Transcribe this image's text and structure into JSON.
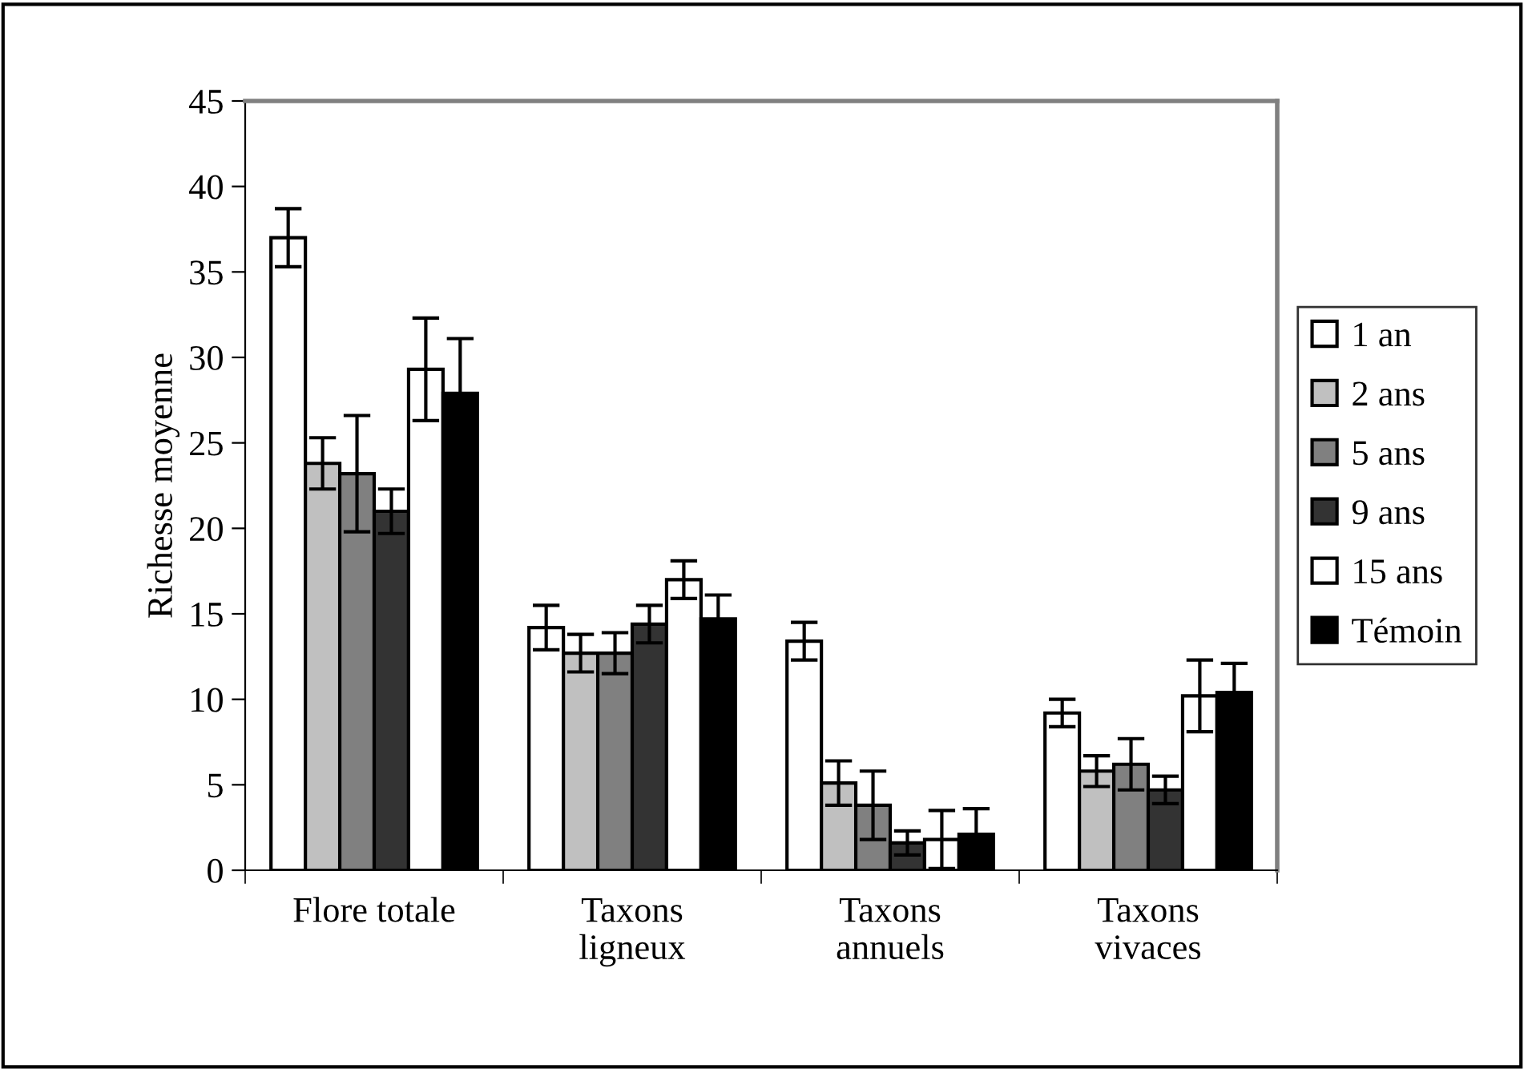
{
  "chart_data": {
    "type": "bar",
    "ylabel": "Richesse moyenne",
    "categories": [
      "Flore totale",
      "Taxons\nligneux",
      "Taxons\nannuels",
      "Taxons\nvivaces"
    ],
    "series": [
      {
        "name": "1 an",
        "color": "#ffffff",
        "values": [
          37,
          14.2,
          13.4,
          9.2
        ],
        "errors": [
          1.7,
          1.3,
          1.1,
          0.8
        ]
      },
      {
        "name": "2 ans",
        "color": "#c0c0c0",
        "values": [
          23.8,
          12.7,
          5.1,
          5.8
        ],
        "errors": [
          1.5,
          1.1,
          1.3,
          0.9
        ]
      },
      {
        "name": "5 ans",
        "color": "#808080",
        "values": [
          23.2,
          12.7,
          3.8,
          6.2
        ],
        "errors": [
          3.4,
          1.2,
          2.0,
          1.5
        ]
      },
      {
        "name": "9 ans",
        "color": "#333333",
        "values": [
          21,
          14.4,
          1.6,
          4.7
        ],
        "errors": [
          1.3,
          1.1,
          0.7,
          0.8
        ]
      },
      {
        "name": "15 ans",
        "color": "#ffffff",
        "values": [
          29.3,
          17,
          1.8,
          10.2
        ],
        "errors": [
          3.0,
          1.1,
          1.7,
          2.1
        ]
      },
      {
        "name": "Témoin",
        "color": "#000000",
        "values": [
          27.9,
          14.7,
          2.1,
          10.4
        ],
        "errors": [
          3.2,
          1.4,
          1.5,
          1.7
        ]
      }
    ],
    "ylim": [
      0,
      45
    ],
    "yticks": [
      0,
      5,
      10,
      15,
      20,
      25,
      30,
      35,
      40,
      45
    ],
    "grid": false,
    "legend": "right"
  }
}
